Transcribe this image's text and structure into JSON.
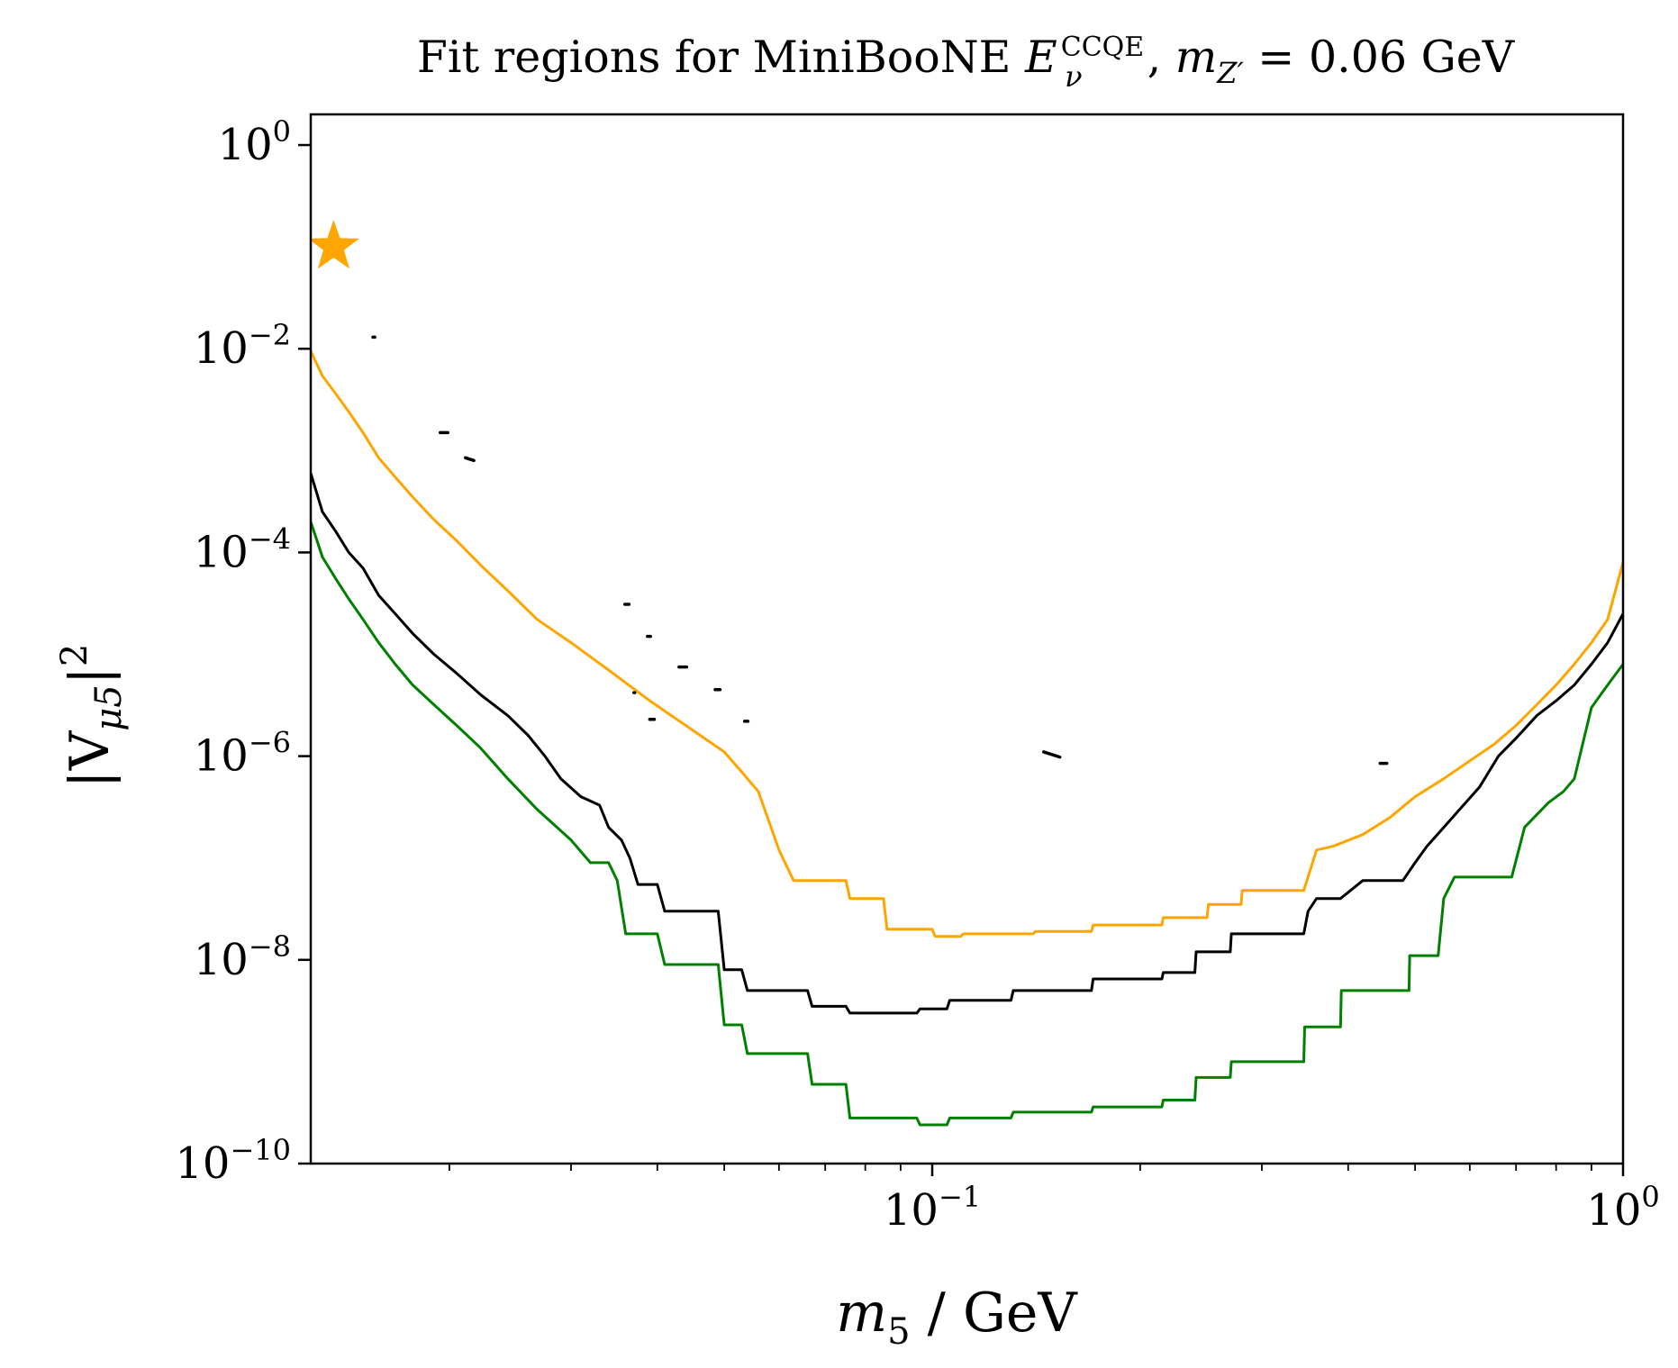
{
  "chart_data": {
    "type": "line",
    "title": {
      "prefix": "Fit regions for MiniBooNE ",
      "e_main": "E",
      "e_sub": "ν",
      "e_sup": "CCQE",
      "sep": ", ",
      "m_main": "m",
      "m_sub": "Z′",
      "suffix": " = 0.06 GeV"
    },
    "xlabel": {
      "main": "m",
      "sub": "5",
      "rest": " / GeV"
    },
    "ylabel": {
      "pre": "|V",
      "sub": "μ5",
      "post": "|",
      "sup": "2"
    },
    "x_scale": "log",
    "y_scale": "log",
    "xlim": [
      0.0126,
      1.0
    ],
    "ylim": [
      1e-10,
      2.0
    ],
    "x_ticks": [
      {
        "value": 0.1,
        "base": "10",
        "exp": "−1"
      },
      {
        "value": 1.0,
        "base": "10",
        "exp": "0"
      }
    ],
    "y_ticks": [
      {
        "value": 1e-10,
        "base": "10",
        "exp": "−10"
      },
      {
        "value": 1e-08,
        "base": "10",
        "exp": "−8"
      },
      {
        "value": 1e-06,
        "base": "10",
        "exp": "−6"
      },
      {
        "value": 0.0001,
        "base": "10",
        "exp": "−4"
      },
      {
        "value": 0.01,
        "base": "10",
        "exp": "−2"
      },
      {
        "value": 1.0,
        "base": "10",
        "exp": "0"
      }
    ],
    "x_minor_ticks": [
      0.02,
      0.03,
      0.04,
      0.05,
      0.06,
      0.07,
      0.08,
      0.09,
      0.2,
      0.3,
      0.4,
      0.5,
      0.6,
      0.7,
      0.8,
      0.9
    ],
    "grid": false,
    "legend": "none",
    "series": [
      {
        "color": "#FFA500",
        "style": "line",
        "points": [
          [
            0.0126,
            0.0095
          ],
          [
            0.0131,
            0.0054
          ],
          [
            0.0137,
            0.0036
          ],
          [
            0.0143,
            0.0024
          ],
          [
            0.015,
            0.0015
          ],
          [
            0.0158,
            0.00085
          ],
          [
            0.0167,
            0.00055
          ],
          [
            0.0177,
            0.00035
          ],
          [
            0.019,
            0.00021
          ],
          [
            0.0205,
            0.00013
          ],
          [
            0.0222,
            7.5e-05
          ],
          [
            0.0243,
            4.2e-05
          ],
          [
            0.0268,
            2.2e-05
          ],
          [
            0.03,
            1.3e-05
          ],
          [
            0.034,
            7e-06
          ],
          [
            0.039,
            3.5e-06
          ],
          [
            0.044,
            2e-06
          ],
          [
            0.05,
            1.1e-06
          ],
          [
            0.053,
            7e-07
          ],
          [
            0.056,
            4.5e-07
          ],
          [
            0.06,
            1.2e-07
          ],
          [
            0.063,
            6e-08
          ],
          [
            0.075,
            6e-08
          ],
          [
            0.076,
            4e-08
          ],
          [
            0.085,
            4e-08
          ],
          [
            0.086,
            2e-08
          ],
          [
            0.1,
            2e-08
          ],
          [
            0.101,
            1.7e-08
          ],
          [
            0.11,
            1.7e-08
          ],
          [
            0.111,
            1.8e-08
          ],
          [
            0.14,
            1.8e-08
          ],
          [
            0.141,
            1.9e-08
          ],
          [
            0.17,
            1.9e-08
          ],
          [
            0.171,
            2.2e-08
          ],
          [
            0.215,
            2.2e-08
          ],
          [
            0.216,
            2.6e-08
          ],
          [
            0.25,
            2.6e-08
          ],
          [
            0.251,
            3.5e-08
          ],
          [
            0.28,
            3.5e-08
          ],
          [
            0.281,
            4.8e-08
          ],
          [
            0.345,
            4.8e-08
          ],
          [
            0.36,
            1.2e-07
          ],
          [
            0.38,
            1.3e-07
          ],
          [
            0.42,
            1.7e-07
          ],
          [
            0.46,
            2.5e-07
          ],
          [
            0.5,
            4e-07
          ],
          [
            0.55,
            6e-07
          ],
          [
            0.6,
            9e-07
          ],
          [
            0.65,
            1.3e-06
          ],
          [
            0.7,
            2e-06
          ],
          [
            0.75,
            3.2e-06
          ],
          [
            0.8,
            5e-06
          ],
          [
            0.85,
            8e-06
          ],
          [
            0.9,
            1.3e-05
          ],
          [
            0.95,
            2.2e-05
          ],
          [
            1.0,
            8e-05
          ]
        ]
      },
      {
        "color": "#000000",
        "style": "line",
        "points": [
          [
            0.0126,
            0.0006
          ],
          [
            0.0131,
            0.00025
          ],
          [
            0.0137,
            0.00016
          ],
          [
            0.0143,
            0.0001
          ],
          [
            0.015,
            7e-05
          ],
          [
            0.0158,
            3.8e-05
          ],
          [
            0.0167,
            2.5e-05
          ],
          [
            0.0177,
            1.6e-05
          ],
          [
            0.019,
            1e-05
          ],
          [
            0.0205,
            6.5e-06
          ],
          [
            0.0222,
            4e-06
          ],
          [
            0.0243,
            2.5e-06
          ],
          [
            0.026,
            1.6e-06
          ],
          [
            0.0275,
            1e-06
          ],
          [
            0.029,
            6e-07
          ],
          [
            0.031,
            4e-07
          ],
          [
            0.033,
            3.3e-07
          ],
          [
            0.034,
            2e-07
          ],
          [
            0.0355,
            1.5e-07
          ],
          [
            0.0365,
            1e-07
          ],
          [
            0.0375,
            5.5e-08
          ],
          [
            0.04,
            5.5e-08
          ],
          [
            0.041,
            3e-08
          ],
          [
            0.049,
            3e-08
          ],
          [
            0.05,
            8e-09
          ],
          [
            0.053,
            8e-09
          ],
          [
            0.054,
            5e-09
          ],
          [
            0.066,
            5e-09
          ],
          [
            0.067,
            3.5e-09
          ],
          [
            0.075,
            3.5e-09
          ],
          [
            0.076,
            3e-09
          ],
          [
            0.095,
            3e-09
          ],
          [
            0.096,
            3.3e-09
          ],
          [
            0.105,
            3.3e-09
          ],
          [
            0.106,
            4e-09
          ],
          [
            0.13,
            4e-09
          ],
          [
            0.131,
            5e-09
          ],
          [
            0.17,
            5e-09
          ],
          [
            0.171,
            6.5e-09
          ],
          [
            0.215,
            6.5e-09
          ],
          [
            0.216,
            7.5e-09
          ],
          [
            0.24,
            7.5e-09
          ],
          [
            0.241,
            1.2e-08
          ],
          [
            0.27,
            1.2e-08
          ],
          [
            0.271,
            1.8e-08
          ],
          [
            0.345,
            1.8e-08
          ],
          [
            0.35,
            3e-08
          ],
          [
            0.36,
            4e-08
          ],
          [
            0.39,
            4e-08
          ],
          [
            0.42,
            6e-08
          ],
          [
            0.48,
            6e-08
          ],
          [
            0.5,
            9e-08
          ],
          [
            0.52,
            1.3e-07
          ],
          [
            0.55,
            2e-07
          ],
          [
            0.58,
            3e-07
          ],
          [
            0.62,
            5e-07
          ],
          [
            0.66,
            1e-06
          ],
          [
            0.7,
            1.5e-06
          ],
          [
            0.75,
            2.5e-06
          ],
          [
            0.8,
            3.5e-06
          ],
          [
            0.85,
            5e-06
          ],
          [
            0.9,
            8e-06
          ],
          [
            0.95,
            1.3e-05
          ],
          [
            1.0,
            2.5e-05
          ]
        ]
      },
      {
        "color": "#008000",
        "style": "line",
        "points": [
          [
            0.0126,
            0.0002
          ],
          [
            0.0131,
            9e-05
          ],
          [
            0.0137,
            5.5e-05
          ],
          [
            0.0143,
            3.5e-05
          ],
          [
            0.015,
            2.2e-05
          ],
          [
            0.0158,
            1.3e-05
          ],
          [
            0.0167,
            8e-06
          ],
          [
            0.0177,
            5e-06
          ],
          [
            0.019,
            3.2e-06
          ],
          [
            0.0205,
            2e-06
          ],
          [
            0.0222,
            1.2e-06
          ],
          [
            0.0243,
            6e-07
          ],
          [
            0.0268,
            3e-07
          ],
          [
            0.03,
            1.5e-07
          ],
          [
            0.032,
            9e-08
          ],
          [
            0.034,
            9e-08
          ],
          [
            0.035,
            6e-08
          ],
          [
            0.036,
            1.8e-08
          ],
          [
            0.04,
            1.8e-08
          ],
          [
            0.041,
            9e-09
          ],
          [
            0.049,
            9e-09
          ],
          [
            0.05,
            2.3e-09
          ],
          [
            0.053,
            2.3e-09
          ],
          [
            0.054,
            1.2e-09
          ],
          [
            0.066,
            1.2e-09
          ],
          [
            0.067,
            6e-10
          ],
          [
            0.075,
            6e-10
          ],
          [
            0.076,
            2.8e-10
          ],
          [
            0.095,
            2.8e-10
          ],
          [
            0.096,
            2.4e-10
          ],
          [
            0.105,
            2.4e-10
          ],
          [
            0.106,
            2.8e-10
          ],
          [
            0.13,
            2.8e-10
          ],
          [
            0.131,
            3.2e-10
          ],
          [
            0.17,
            3.2e-10
          ],
          [
            0.171,
            3.6e-10
          ],
          [
            0.215,
            3.6e-10
          ],
          [
            0.216,
            4.2e-10
          ],
          [
            0.24,
            4.2e-10
          ],
          [
            0.241,
            7e-10
          ],
          [
            0.27,
            7e-10
          ],
          [
            0.271,
            1e-09
          ],
          [
            0.345,
            1e-09
          ],
          [
            0.346,
            2.2e-09
          ],
          [
            0.39,
            2.2e-09
          ],
          [
            0.391,
            5e-09
          ],
          [
            0.49,
            5e-09
          ],
          [
            0.491,
            1.1e-08
          ],
          [
            0.54,
            1.1e-08
          ],
          [
            0.55,
            4e-08
          ],
          [
            0.57,
            6.5e-08
          ],
          [
            0.69,
            6.5e-08
          ],
          [
            0.72,
            2e-07
          ],
          [
            0.78,
            3.5e-07
          ],
          [
            0.82,
            4.5e-07
          ],
          [
            0.85,
            6e-07
          ],
          [
            0.9,
            3e-06
          ],
          [
            0.95,
            5e-06
          ],
          [
            1.0,
            8e-06
          ]
        ]
      }
    ],
    "markers": [
      {
        "shape": "star",
        "color": "#FFA500",
        "x": 0.0136,
        "y": 0.1
      }
    ],
    "contours": [
      {
        "color": "#000000",
        "x": [
          0.0155,
          0.0156
        ],
        "y": [
          0.013,
          0.013
        ]
      },
      {
        "color": "#000000",
        "x": [
          0.0194,
          0.0199
        ],
        "y": [
          0.0015,
          0.0015
        ]
      },
      {
        "color": "#000000",
        "x": [
          0.0211,
          0.0217
        ],
        "y": [
          0.00085,
          0.0008
        ]
      },
      {
        "color": "#000000",
        "x": [
          0.0359,
          0.0364
        ],
        "y": [
          3.1e-05,
          3.1e-05
        ]
      },
      {
        "color": "#000000",
        "x": [
          0.0387,
          0.0391
        ],
        "y": [
          1.5e-05,
          1.5e-05
        ]
      },
      {
        "color": "#000000",
        "x": [
          0.043,
          0.0441
        ],
        "y": [
          7.5e-06,
          7.5e-06
        ]
      },
      {
        "color": "#000000",
        "x": [
          0.037,
          0.0371
        ],
        "y": [
          4.2e-06,
          4.2e-06
        ]
      },
      {
        "color": "#000000",
        "x": [
          0.0485,
          0.0493
        ],
        "y": [
          4.5e-06,
          4.5e-06
        ]
      },
      {
        "color": "#000000",
        "x": [
          0.039,
          0.0396
        ],
        "y": [
          2.3e-06,
          2.3e-06
        ]
      },
      {
        "color": "#000000",
        "x": [
          0.0535,
          0.0541
        ],
        "y": [
          2.2e-06,
          2.2e-06
        ]
      },
      {
        "color": "#000000",
        "x": [
          0.145,
          0.153
        ],
        "y": [
          1.1e-06,
          9.8e-07
        ]
      },
      {
        "color": "#000000",
        "x": [
          0.445,
          0.455
        ],
        "y": [
          8.5e-07,
          8.5e-07
        ]
      }
    ]
  }
}
